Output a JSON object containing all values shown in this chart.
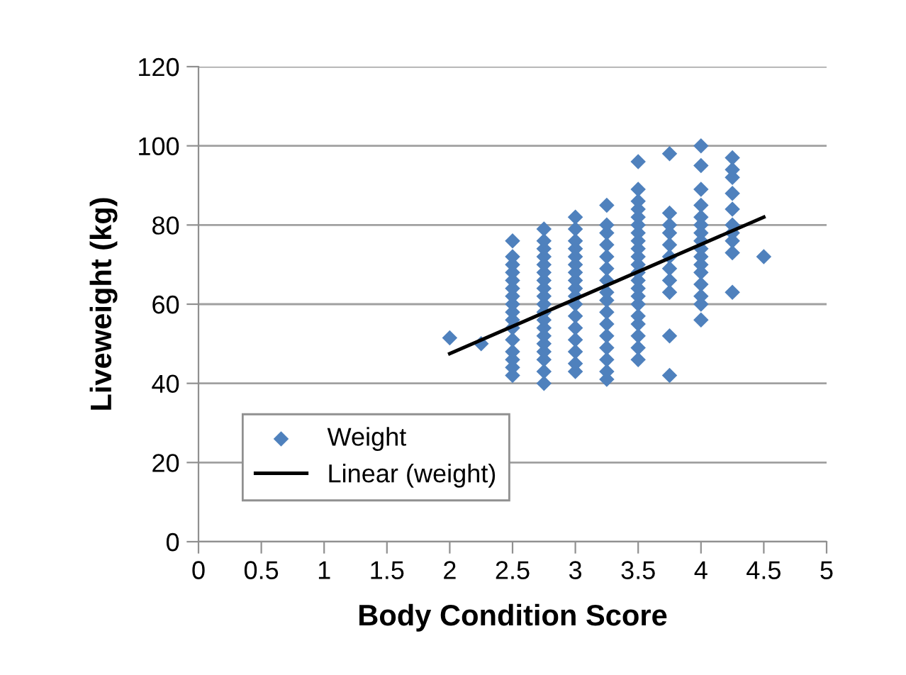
{
  "chart_data": {
    "type": "scatter",
    "xlabel": "Body Condition Score",
    "ylabel": "Liveweight (kg)",
    "xlim": [
      0,
      5
    ],
    "xticks": [
      0,
      0.5,
      1,
      1.5,
      2,
      2.5,
      3,
      3.5,
      4,
      4.5,
      5
    ],
    "ylim": [
      0,
      120
    ],
    "yticks": [
      0,
      20,
      40,
      60,
      80,
      100,
      120
    ],
    "grid": "y",
    "legend": "bottom left",
    "marker": "diamond",
    "series": [
      {
        "name": "Weight",
        "color": "#4f81bd",
        "x": [
          2,
          2.25,
          2.5,
          2.5,
          2.5,
          2.5,
          2.5,
          2.5,
          2.5,
          2.5,
          2.5,
          2.5,
          2.5,
          2.5,
          2.5,
          2.5,
          2.5,
          2.5,
          2.75,
          2.75,
          2.75,
          2.75,
          2.75,
          2.75,
          2.75,
          2.75,
          2.75,
          2.75,
          2.75,
          2.75,
          2.75,
          2.75,
          2.75,
          2.75,
          2.75,
          2.75,
          2.75,
          3,
          3,
          3,
          3,
          3,
          3,
          3,
          3,
          3,
          3,
          3,
          3,
          3,
          3,
          3,
          3,
          3,
          3.25,
          3.25,
          3.25,
          3.25,
          3.25,
          3.25,
          3.25,
          3.25,
          3.25,
          3.25,
          3.25,
          3.25,
          3.25,
          3.25,
          3.25,
          3.25,
          3.5,
          3.5,
          3.5,
          3.5,
          3.5,
          3.5,
          3.5,
          3.5,
          3.5,
          3.5,
          3.5,
          3.5,
          3.5,
          3.5,
          3.5,
          3.5,
          3.5,
          3.5,
          3.5,
          3.5,
          3.5,
          3.75,
          3.75,
          3.75,
          3.75,
          3.75,
          3.75,
          3.75,
          3.75,
          3.75,
          3.75,
          3.75,
          4,
          4,
          4,
          4,
          4,
          4,
          4,
          4,
          4,
          4,
          4,
          4,
          4,
          4,
          4,
          4,
          4.25,
          4.25,
          4.25,
          4.25,
          4.25,
          4.25,
          4.25,
          4.25,
          4.25,
          4.25,
          4.5
        ],
        "values": [
          51.5,
          50,
          42,
          44,
          46,
          48,
          51,
          54,
          56,
          58,
          60,
          62,
          64,
          66,
          68,
          70,
          72,
          76,
          40,
          43,
          46,
          48,
          50,
          52,
          54,
          56,
          58,
          60,
          62,
          64,
          66,
          68,
          70,
          72,
          74,
          76,
          79,
          43,
          45,
          48,
          51,
          54,
          57,
          60,
          62,
          64,
          66,
          68,
          70,
          72,
          74,
          76,
          79,
          82,
          41,
          43,
          46,
          49,
          52,
          55,
          58,
          61,
          63,
          66,
          69,
          72,
          75,
          78,
          80,
          85,
          46,
          49,
          52,
          55,
          57,
          60,
          62,
          64,
          66,
          68,
          70,
          72,
          74,
          76,
          78,
          80,
          82,
          84,
          86,
          89,
          96,
          42,
          52,
          63,
          66,
          69,
          72,
          75,
          78,
          80,
          83,
          98,
          56,
          60,
          62,
          65,
          68,
          70,
          72,
          74,
          76,
          78,
          80,
          82,
          85,
          89,
          95,
          100,
          63,
          73,
          76,
          78,
          80,
          84,
          88,
          92,
          94,
          97,
          72
        ]
      },
      {
        "name": "Linear (weight)",
        "type": "line",
        "color": "#000000",
        "x": [
          2,
          4.5
        ],
        "values": [
          47.5,
          82
        ],
        "marker": "none"
      }
    ]
  }
}
